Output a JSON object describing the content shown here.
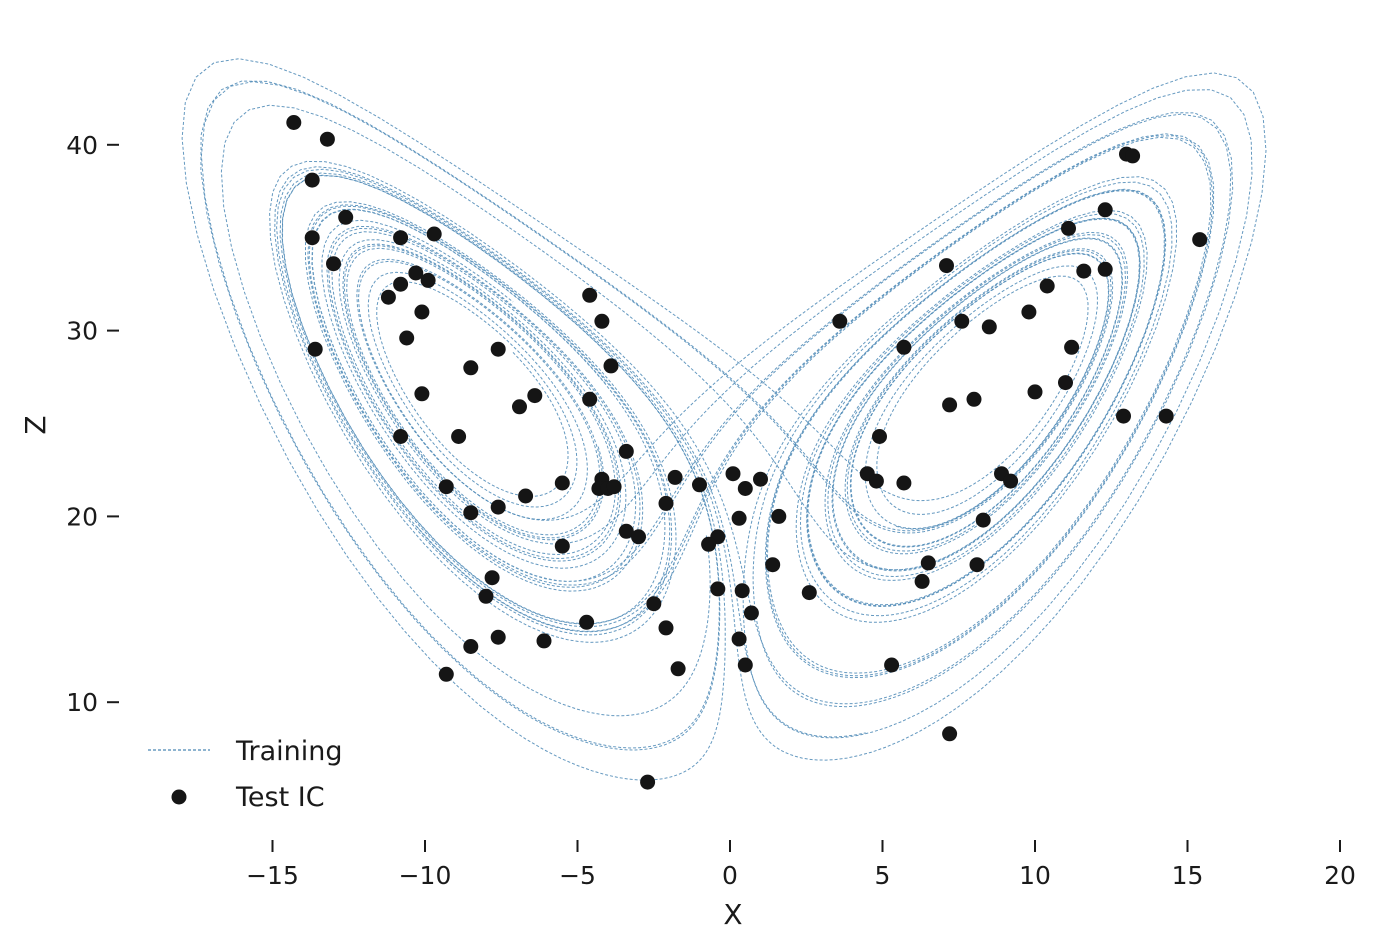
{
  "chart_data": {
    "type": "line+scatter",
    "title": "",
    "xlabel": "X",
    "ylabel": "Z",
    "xlim": [
      -20,
      20
    ],
    "ylim": [
      3.5,
      46
    ],
    "xticks": [
      -15,
      -10,
      -5,
      0,
      5,
      10,
      15,
      20
    ],
    "yticks": [
      10,
      20,
      30,
      40
    ],
    "xtick_labels": [
      "−15",
      "−10",
      "−5",
      "0",
      "5",
      "10",
      "15",
      "20"
    ],
    "ytick_labels": [
      "10",
      "20",
      "30",
      "40"
    ],
    "grid": false,
    "legend_placement": "lower-left",
    "colors": {
      "training": "#4a87b5",
      "test": "#151515",
      "text": "#1a1a1a"
    },
    "series": [
      {
        "name": "Training",
        "style": "dashed-line",
        "description_values": "Lorenz attractor trajectories (sigma=10, rho=28, beta=8/3) projected on X–Z plane"
      },
      {
        "name": "Test IC",
        "style": "marker",
        "points": [
          [
            -14.3,
            41.2
          ],
          [
            -13.2,
            40.3
          ],
          [
            -13.7,
            38.1
          ],
          [
            -12.6,
            36.1
          ],
          [
            -13.7,
            35.0
          ],
          [
            -13.0,
            33.6
          ],
          [
            -10.8,
            35.0
          ],
          [
            -9.7,
            35.2
          ],
          [
            -10.3,
            33.1
          ],
          [
            -9.9,
            32.7
          ],
          [
            -10.8,
            32.5
          ],
          [
            -11.2,
            31.8
          ],
          [
            -10.1,
            31.0
          ],
          [
            -10.6,
            29.6
          ],
          [
            -13.6,
            29.0
          ],
          [
            -7.6,
            29.0
          ],
          [
            -8.5,
            28.0
          ],
          [
            -10.1,
            26.6
          ],
          [
            -6.4,
            26.5
          ],
          [
            -6.9,
            25.9
          ],
          [
            -4.6,
            31.9
          ],
          [
            -4.2,
            30.5
          ],
          [
            -3.9,
            28.1
          ],
          [
            -4.6,
            26.3
          ],
          [
            -10.8,
            24.3
          ],
          [
            -8.9,
            24.3
          ],
          [
            -3.4,
            23.5
          ],
          [
            -9.3,
            21.6
          ],
          [
            -5.5,
            21.8
          ],
          [
            -6.7,
            21.1
          ],
          [
            -4.2,
            22.0
          ],
          [
            -4.3,
            21.5
          ],
          [
            -4.0,
            21.5
          ],
          [
            -3.8,
            21.6
          ],
          [
            -7.6,
            20.5
          ],
          [
            -8.5,
            20.2
          ],
          [
            -3.4,
            19.2
          ],
          [
            -3.0,
            18.9
          ],
          [
            -5.5,
            18.4
          ],
          [
            -1.8,
            22.1
          ],
          [
            -2.1,
            20.7
          ],
          [
            -1.0,
            21.7
          ],
          [
            -0.4,
            18.9
          ],
          [
            -0.7,
            18.5
          ],
          [
            0.1,
            22.3
          ],
          [
            0.5,
            21.5
          ],
          [
            1.0,
            22.0
          ],
          [
            0.3,
            19.9
          ],
          [
            1.6,
            20.0
          ],
          [
            -7.8,
            16.7
          ],
          [
            -8.0,
            15.7
          ],
          [
            -2.5,
            15.3
          ],
          [
            -0.4,
            16.1
          ],
          [
            0.4,
            16.0
          ],
          [
            0.7,
            14.8
          ],
          [
            1.4,
            17.4
          ],
          [
            2.6,
            15.9
          ],
          [
            -4.7,
            14.3
          ],
          [
            -2.1,
            14.0
          ],
          [
            -7.6,
            13.5
          ],
          [
            -6.1,
            13.3
          ],
          [
            -8.5,
            13.0
          ],
          [
            0.3,
            13.4
          ],
          [
            -1.7,
            11.8
          ],
          [
            0.5,
            12.0
          ],
          [
            -9.3,
            11.5
          ],
          [
            -2.7,
            5.7
          ],
          [
            3.6,
            30.5
          ],
          [
            5.7,
            29.1
          ],
          [
            4.9,
            24.3
          ],
          [
            4.5,
            22.3
          ],
          [
            4.8,
            21.9
          ],
          [
            5.7,
            21.8
          ],
          [
            7.1,
            33.5
          ],
          [
            7.6,
            30.5
          ],
          [
            8.5,
            30.2
          ],
          [
            9.8,
            31.0
          ],
          [
            10.4,
            32.4
          ],
          [
            11.6,
            33.2
          ],
          [
            12.3,
            33.3
          ],
          [
            11.1,
            35.5
          ],
          [
            12.3,
            36.5
          ],
          [
            13.0,
            39.5
          ],
          [
            13.2,
            39.4
          ],
          [
            15.4,
            34.9
          ],
          [
            11.2,
            29.1
          ],
          [
            11.0,
            27.2
          ],
          [
            10.0,
            26.7
          ],
          [
            8.0,
            26.3
          ],
          [
            7.2,
            26.0
          ],
          [
            12.9,
            25.4
          ],
          [
            14.3,
            25.4
          ],
          [
            8.9,
            22.3
          ],
          [
            9.2,
            21.9
          ],
          [
            8.3,
            19.8
          ],
          [
            6.5,
            17.5
          ],
          [
            8.1,
            17.4
          ],
          [
            6.3,
            16.5
          ],
          [
            5.3,
            12.0
          ],
          [
            7.2,
            8.3
          ]
        ]
      }
    ]
  }
}
